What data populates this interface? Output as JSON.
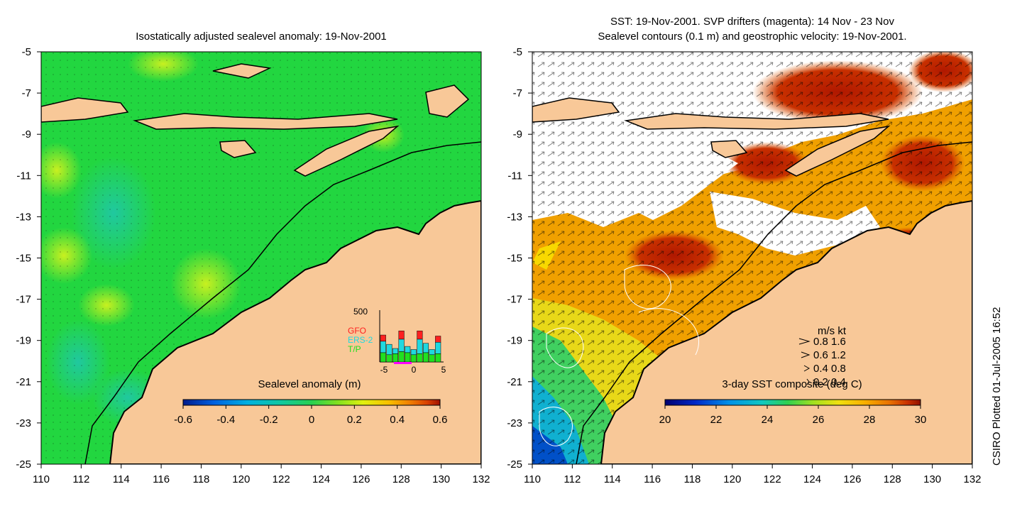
{
  "left_panel": {
    "title": "Isostatically adjusted sealevel anomaly: 19-Nov-2001",
    "colorbar": {
      "label": "Sealevel anomaly (m)",
      "ticks": [
        "-0.6",
        "-0.4",
        "-0.2",
        "0",
        "0.2",
        "0.4",
        "0.6"
      ],
      "colors": [
        "#001a8c",
        "#0060e0",
        "#00b0e0",
        "#10c8a0",
        "#28d050",
        "#80e020",
        "#e0f010",
        "#f8c000",
        "#f08000",
        "#d84000",
        "#a01000"
      ]
    },
    "histogram": {
      "ymax_label": "500",
      "x_ticks": [
        "-5",
        "0",
        "5"
      ],
      "legend": [
        {
          "label": "GFO",
          "color": "#ff2020"
        },
        {
          "label": "ERS-2",
          "color": "#20d8e0"
        },
        {
          "label": "T/P",
          "color": "#20e020"
        }
      ],
      "bars": [
        {
          "tp": 0.18,
          "ers": 0.22,
          "gfo": 0.12
        },
        {
          "tp": 0.14,
          "ers": 0.2,
          "gfo": 0.0
        },
        {
          "tp": 0.16,
          "ers": 0.1,
          "gfo": 0.0
        },
        {
          "tp": 0.2,
          "ers": 0.24,
          "gfo": 0.16
        },
        {
          "tp": 0.18,
          "ers": 0.12,
          "gfo": 0.0
        },
        {
          "tp": 0.14,
          "ers": 0.1,
          "gfo": 0.0
        },
        {
          "tp": 0.16,
          "ers": 0.28,
          "gfo": 0.16
        },
        {
          "tp": 0.18,
          "ers": 0.18,
          "gfo": 0.0
        },
        {
          "tp": 0.14,
          "ers": 0.1,
          "gfo": 0.0
        },
        {
          "tp": 0.16,
          "ers": 0.22,
          "gfo": 0.12
        }
      ]
    }
  },
  "right_panel": {
    "title_line1": "SST: 19-Nov-2001. SVP drifters (magenta): 14 Nov - 23 Nov",
    "title_line2": "Sealevel contours (0.1 m) and geostrophic velocity: 19-Nov-2001.",
    "colorbar": {
      "label": "3-day SST composite (deg C)",
      "ticks": [
        "20",
        "22",
        "24",
        "26",
        "28",
        "30"
      ],
      "colors": [
        "#000070",
        "#0028c8",
        "#0090e8",
        "#10c8c0",
        "#30d050",
        "#a0e020",
        "#f0e010",
        "#f8b000",
        "#e87000",
        "#c83000",
        "#901000"
      ]
    },
    "velocity_legend": {
      "header": "m/s  kt",
      "rows": [
        "0.8  1.6",
        "0.6  1.2",
        "0.4  0.8",
        "0.2  0.4"
      ]
    }
  },
  "axes": {
    "y_ticks": [
      "-5",
      "-7",
      "-9",
      "-11",
      "-13",
      "-15",
      "-17",
      "-19",
      "-21",
      "-23",
      "-25"
    ],
    "x_ticks": [
      "110",
      "112",
      "114",
      "116",
      "118",
      "120",
      "122",
      "124",
      "126",
      "128",
      "130",
      "132"
    ],
    "lat_range": [
      -25,
      -5
    ],
    "lon_range": [
      110,
      132
    ]
  },
  "credit": "CSIRO Plotted 01-Jul-2005 16:52",
  "colors": {
    "land": "#f8c898",
    "sea_green": "#22d640",
    "sst_white": "#ffffff"
  }
}
